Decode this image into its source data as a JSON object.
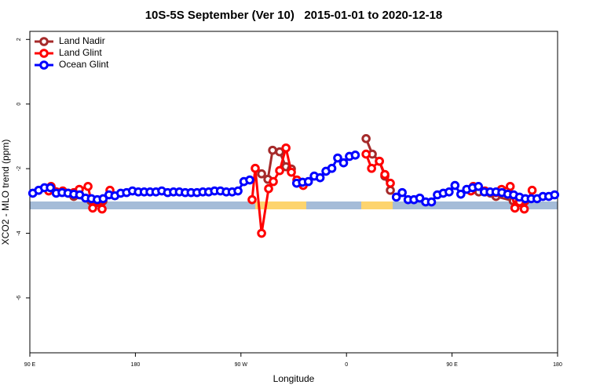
{
  "chart_data": {
    "type": "line",
    "title": "10S-5S September (Ver 10)   2015-01-01 to 2020-12-18",
    "x_label": "Longitude",
    "y_label": "XCO2 - MLO trend (ppm)",
    "xlim": [
      90,
      540
    ],
    "ylim": [
      -7.7,
      2.25
    ],
    "xticks": [
      {
        "value": 90,
        "label": "90 E"
      },
      180,
      {
        "value": 270,
        "label": "90 W"
      },
      {
        "value": 360,
        "label": "0"
      },
      {
        "value": 450,
        "label": "90 E"
      },
      {
        "value": 540,
        "label": "180"
      }
    ],
    "yticks": [
      -6,
      -4,
      -2,
      0,
      2
    ],
    "legend": "topleft",
    "series": [
      {
        "name": "Land Nadir",
        "color": "#a52a2a",
        "x": [
          108.1,
          112.8,
          118.1,
          122.8,
          127.5,
          142.2,
          146.9,
          152.3,
          null,
          287.6,
          293,
          297,
          303,
          308.4,
          313,
          null,
          376.7,
          382,
          388,
          392.7,
          397.4,
          null,
          468.1,
          472.8,
          478.1,
          482.8,
          487.5,
          502.2,
          506.9,
          512.3
        ],
        "values": [
          -2.62,
          -2.72,
          -2.72,
          -2.76,
          -2.86,
          -3.0,
          -3.05,
          -3.0,
          null,
          -2.16,
          -2.33,
          -1.43,
          -1.48,
          -1.94,
          -2.01,
          null,
          -1.07,
          -1.55,
          -1.77,
          -2.23,
          -2.67,
          null,
          -2.62,
          -2.72,
          -2.72,
          -2.76,
          -2.86,
          -3.0,
          -3.05,
          -3.0
        ]
      },
      {
        "name": "Land Glint",
        "color": "#ff0000",
        "x": [
          106.1,
          108.1,
          118.1,
          127.5,
          132.2,
          139.6,
          143.6,
          147.6,
          151.6,
          158.3,
          null,
          279.5,
          282.2,
          287.6,
          293.6,
          297.6,
          303,
          308.4,
          313,
          317.7,
          323.1,
          null,
          376.7,
          381.4,
          388.1,
          392.7,
          397.4,
          null,
          466.1,
          468.1,
          478.1,
          487.5,
          492.2,
          499.6,
          503.6,
          507.6,
          511.6,
          518.3
        ],
        "values": [
          -2.69,
          -2.55,
          -2.69,
          -2.74,
          -2.64,
          -2.55,
          -3.22,
          -3.03,
          -3.25,
          -2.67,
          null,
          -2.96,
          -1.99,
          -4.0,
          -2.62,
          -2.4,
          -2.06,
          -1.36,
          -2.11,
          -2.35,
          -2.52,
          null,
          -1.55,
          -1.99,
          -1.77,
          -2.18,
          -2.45,
          null,
          -2.69,
          -2.55,
          -2.69,
          -2.74,
          -2.64,
          -2.55,
          -3.22,
          -3.03,
          -3.25,
          -2.67
        ]
      },
      {
        "name": "Ocean Glint",
        "color": "#0000ff",
        "x": [
          92.5,
          97.5,
          102.5,
          107.5,
          112.5,
          117.5,
          122.5,
          127.5,
          132.5,
          137.5,
          142.5,
          147.5,
          152.5,
          157.5,
          162.5,
          167.5,
          172.5,
          177.5,
          182.5,
          187.5,
          192.5,
          197.5,
          202.5,
          207.5,
          212.5,
          217.5,
          222.5,
          227.5,
          232.5,
          237.5,
          242.5,
          247.5,
          252.5,
          257.5,
          262.5,
          267.5,
          272.5,
          277.5,
          282.5,
          287.5,
          292.5,
          297.5,
          302.5,
          307.5,
          312.5,
          317.5,
          322.5,
          327.5,
          332.5,
          337.5,
          342.5,
          347.5,
          352.5,
          357.5,
          362.5,
          367.5,
          372.5,
          377.5,
          382.5,
          387.5,
          392.5,
          397.5,
          402.5,
          407.5,
          412.5,
          417.5,
          422.5,
          427.5,
          432.5,
          437.5,
          442.5,
          447.5,
          452.5,
          457.5,
          462.5,
          467.5,
          472.5,
          477.5,
          482.5,
          487.5,
          492.5,
          497.5,
          502.5,
          507.5,
          512.5,
          517.5,
          522.5,
          527.5,
          532.5,
          537.5
        ],
        "values": [
          -2.76,
          -2.67,
          -2.59,
          -2.59,
          -2.76,
          -2.74,
          -2.76,
          -2.79,
          -2.81,
          -2.91,
          -2.93,
          -2.96,
          -2.93,
          -2.81,
          -2.84,
          -2.76,
          -2.74,
          -2.69,
          -2.72,
          -2.72,
          -2.72,
          -2.72,
          -2.69,
          -2.74,
          -2.72,
          -2.72,
          -2.74,
          -2.74,
          -2.74,
          -2.72,
          -2.72,
          -2.69,
          -2.69,
          -2.72,
          -2.72,
          -2.69,
          -2.4,
          -2.35,
          null,
          null,
          null,
          null,
          null,
          null,
          null,
          -2.45,
          -2.42,
          -2.4,
          -2.23,
          -2.28,
          -2.08,
          -1.99,
          -1.67,
          -1.82,
          -1.62,
          -1.58,
          null,
          null,
          null,
          null,
          null,
          null,
          -2.88,
          -2.74,
          -2.96,
          -2.96,
          -2.91,
          -3.03,
          -3.03,
          -2.81,
          -2.76,
          -2.72,
          -2.52,
          -2.79,
          -2.64,
          -2.59,
          -2.55,
          -2.72,
          -2.72,
          -2.72,
          -2.74,
          -2.79,
          -2.81,
          -2.88,
          -2.93,
          -2.93,
          -2.93,
          -2.86,
          -2.86,
          -2.81
        ]
      }
    ]
  }
}
